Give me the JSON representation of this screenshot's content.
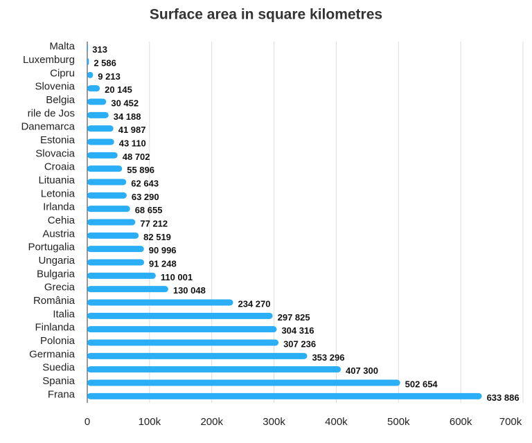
{
  "chart_data": {
    "type": "barh",
    "title": "Surface area in square kilometres",
    "categories": [
      "Malta",
      "Luxemburg",
      "Cipru",
      "Slovenia",
      "Belgia",
      "rile de Jos",
      "Danemarca",
      "Estonia",
      "Slovacia",
      "Croaia",
      "Lituania",
      "Letonia",
      "Irlanda",
      "Cehia",
      "Austria",
      "Portugalia",
      "Ungaria",
      "Bulgaria",
      "Grecia",
      "România",
      "Italia",
      "Finlanda",
      "Polonia",
      "Germania",
      "Suedia",
      "Spania",
      "Frana"
    ],
    "values": [
      313,
      2586,
      9213,
      20145,
      30452,
      34188,
      41987,
      43110,
      48702,
      55896,
      62643,
      63290,
      68655,
      77212,
      82519,
      90996,
      91248,
      110001,
      130048,
      234270,
      297825,
      304316,
      307236,
      353296,
      407300,
      502654,
      633886
    ],
    "value_labels": [
      "313",
      "2 586",
      "9 213",
      "20 145",
      "30 452",
      "34 188",
      "41 987",
      "43 110",
      "48 702",
      "55 896",
      "62 643",
      "63 290",
      "68 655",
      "77 212",
      "82 519",
      "90 996",
      "91 248",
      "110 001",
      "130 048",
      "234 270",
      "297 825",
      "304 316",
      "307 236",
      "353 296",
      "407 300",
      "502 654",
      "633 886"
    ],
    "color": "#2aaef5",
    "xlim": [
      0,
      700000
    ],
    "xticks": [
      0,
      {
        "value": 100000,
        "label": "100k"
      },
      {
        "value": 200000,
        "label": "200k"
      },
      {
        "value": 300000,
        "label": "300k"
      },
      {
        "value": 400000,
        "label": "400k"
      },
      {
        "value": 500000,
        "label": "500k"
      },
      {
        "value": 600000,
        "label": "600k"
      },
      {
        "value": 700000,
        "label": "700k"
      }
    ],
    "grid": true
  }
}
